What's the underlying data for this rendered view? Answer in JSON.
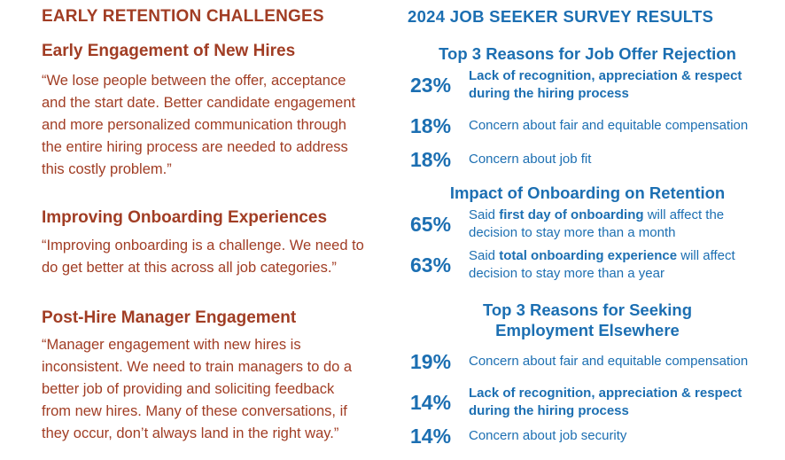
{
  "left": {
    "title": "EARLY RETENTION CHALLENGES",
    "sections": [
      {
        "heading": "Early Engagement of New Hires",
        "quote": "“We lose people between the offer, acceptance and the start date. Better candidate engagement and more personalized communication through the entire hiring process are needed to address this costly problem.”"
      },
      {
        "heading": "Improving Onboarding Experiences",
        "quote": "“Improving onboarding is a challenge. We need to do get better at this across all job categories.”"
      },
      {
        "heading": "Post-Hire Manager Engagement",
        "quote": "“Manager engagement with new hires is inconsistent. We need to train managers to do a better job of providing and soliciting feedback from new hires. Many of these conversations, if they occur, don’t always land in the right way.”"
      }
    ]
  },
  "right": {
    "title": "2024 JOB SEEKER SURVEY RESULTS",
    "groups": [
      {
        "heading": "Top 3 Reasons for Job Offer Rejection",
        "items": [
          {
            "pct": "23%",
            "text": "Lack of recognition, appreciation & respect during the hiring process"
          },
          {
            "pct": "18%",
            "text": "Concern about fair and equitable compensation"
          },
          {
            "pct": "18%",
            "text": "Concern about job fit"
          }
        ]
      },
      {
        "heading": "Impact of Onboarding on Retention",
        "items": [
          {
            "pct": "65%",
            "pre": "Said ",
            "bold": "first day of onboarding",
            "post": " will affect the decision to stay more than a month"
          },
          {
            "pct": "63%",
            "pre": "Said ",
            "bold": "total onboarding experience",
            "post": " will affect decision to stay more than a year"
          }
        ]
      },
      {
        "heading": "Top 3 Reasons for Seeking Employment Elsewhere",
        "items": [
          {
            "pct": "19%",
            "text": "Concern about fair and equitable compensation"
          },
          {
            "pct": "14%",
            "text": "Lack of recognition, appreciation & respect during the hiring process"
          },
          {
            "pct": "14%",
            "text": "Concern about job security"
          }
        ]
      }
    ]
  },
  "colors": {
    "left_accent": "#a13d24",
    "right_accent": "#1c6fb2"
  }
}
